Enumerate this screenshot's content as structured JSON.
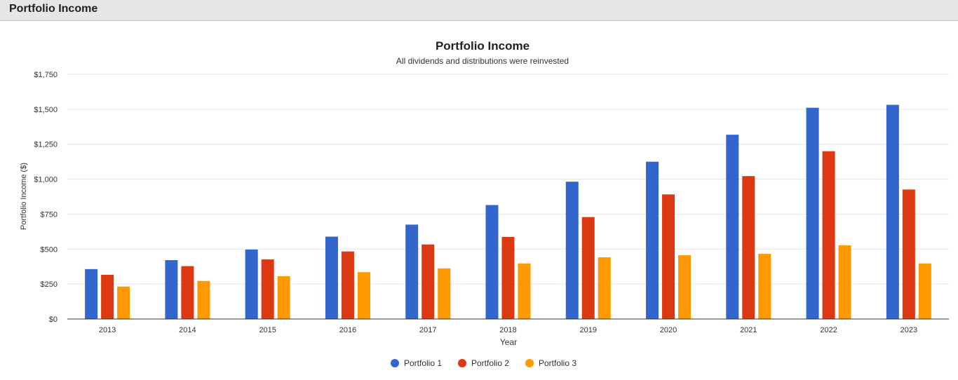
{
  "panel": {
    "title": "Portfolio Income"
  },
  "colors": {
    "series": [
      "#3366cc",
      "#dc3912",
      "#ff9900"
    ],
    "grid": "#e6e6e6",
    "axis": "#333333"
  },
  "chart_data": {
    "type": "bar",
    "title": "Portfolio Income",
    "subtitle": "All dividends and distributions were reinvested",
    "xlabel": "Year",
    "ylabel": "Portfolio Income ($)",
    "ylim": [
      0,
      1750
    ],
    "yticks": [
      0,
      250,
      500,
      750,
      1000,
      1250,
      1500,
      1750
    ],
    "ytick_labels": [
      "$0",
      "$250",
      "$500",
      "$750",
      "$1,000",
      "$1,250",
      "$1,500",
      "$1,750"
    ],
    "grid": true,
    "legend_position": "bottom",
    "categories": [
      "2013",
      "2014",
      "2015",
      "2016",
      "2017",
      "2018",
      "2019",
      "2020",
      "2021",
      "2022",
      "2023"
    ],
    "series": [
      {
        "name": "Portfolio 1",
        "values": [
          357,
          421,
          497,
          589,
          675,
          815,
          982,
          1125,
          1318,
          1511,
          1532
        ]
      },
      {
        "name": "Portfolio 2",
        "values": [
          316,
          378,
          426,
          483,
          533,
          587,
          729,
          891,
          1022,
          1200,
          926
        ]
      },
      {
        "name": "Portfolio 3",
        "values": [
          232,
          272,
          306,
          335,
          362,
          397,
          441,
          456,
          466,
          527,
          397
        ]
      }
    ]
  }
}
